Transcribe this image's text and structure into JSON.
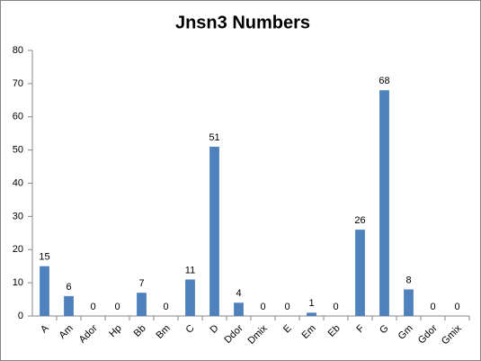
{
  "chart_data": {
    "type": "bar",
    "title": "Jnsn3 Numbers",
    "categories": [
      "A",
      "Am",
      "Ador",
      "Hp",
      "Bb",
      "Bm",
      "C",
      "D",
      "Ddor",
      "Dmix",
      "E",
      "Em",
      "Eb",
      "F",
      "G",
      "Gm",
      "Gdor",
      "Gmix"
    ],
    "values": [
      15,
      6,
      0,
      0,
      7,
      0,
      11,
      51,
      4,
      0,
      0,
      1,
      0,
      26,
      68,
      8,
      0,
      0
    ],
    "color": "#4f81bd",
    "ylim": [
      0,
      80
    ],
    "yticks": [
      0,
      10,
      20,
      30,
      40,
      50,
      60,
      70,
      80
    ],
    "grid": false,
    "data_labels": true
  }
}
